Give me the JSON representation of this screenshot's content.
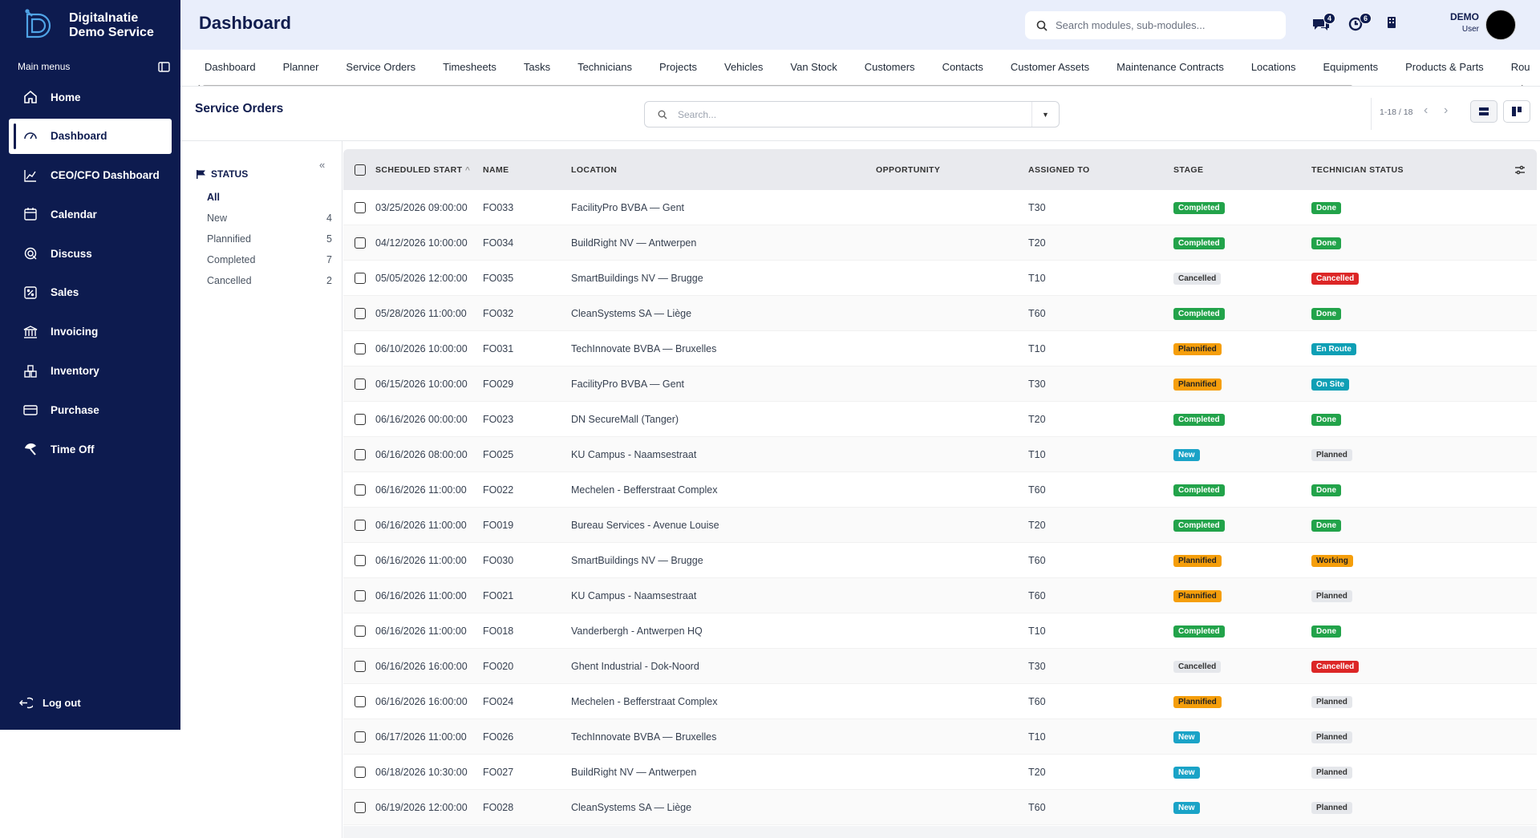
{
  "brand": {
    "line1": "Digitalnatie",
    "line2": "Demo Service"
  },
  "sidebar": {
    "menu_label": "Main menus",
    "items": [
      {
        "label": "Home",
        "icon": "home-icon"
      },
      {
        "label": "Dashboard",
        "icon": "dashboard-icon",
        "active": true
      },
      {
        "label": "CEO/CFO Dashboard",
        "icon": "chart-line-icon"
      },
      {
        "label": "Calendar",
        "icon": "calendar-icon"
      },
      {
        "label": "Discuss",
        "icon": "chat-icon"
      },
      {
        "label": "Sales",
        "icon": "sales-icon"
      },
      {
        "label": "Invoicing",
        "icon": "bank-icon"
      },
      {
        "label": "Inventory",
        "icon": "inventory-icon"
      },
      {
        "label": "Purchase",
        "icon": "card-icon"
      },
      {
        "label": "Time Off",
        "icon": "umbrella-icon"
      }
    ],
    "logout": "Log out"
  },
  "header": {
    "title": "Dashboard",
    "search_placeholder": "Search modules, sub-modules...",
    "messages_count": "4",
    "activities_count": "6",
    "user_name": "DEMO",
    "user_role": "User"
  },
  "tabs": [
    "Dashboard",
    "Planner",
    "Service Orders",
    "Timesheets",
    "Tasks",
    "Technicians",
    "Projects",
    "Vehicles",
    "Van Stock",
    "Customers",
    "Contacts",
    "Customer Assets",
    "Maintenance Contracts",
    "Locations",
    "Equipments",
    "Products & Parts",
    "Rou"
  ],
  "list": {
    "title": "Service Orders",
    "search_placeholder": "Search...",
    "pager": "1-18 / 18"
  },
  "filter": {
    "title": "STATUS",
    "items": [
      {
        "label": "All",
        "count": ""
      },
      {
        "label": "New",
        "count": "4"
      },
      {
        "label": "Plannified",
        "count": "5"
      },
      {
        "label": "Completed",
        "count": "7"
      },
      {
        "label": "Cancelled",
        "count": "2"
      }
    ]
  },
  "table": {
    "columns": [
      "SCHEDULED START",
      "NAME",
      "LOCATION",
      "OPPORTUNITY",
      "ASSIGNED TO",
      "STAGE",
      "TECHNICIAN STATUS"
    ],
    "rows": [
      {
        "start": "03/25/2026 09:00:00",
        "name": "FO033",
        "location": "FacilityPro BVBA — Gent",
        "opp": "",
        "assigned": "T30",
        "stage": "Completed",
        "tech": "Done"
      },
      {
        "start": "04/12/2026 10:00:00",
        "name": "FO034",
        "location": "BuildRight NV — Antwerpen",
        "opp": "",
        "assigned": "T20",
        "stage": "Completed",
        "tech": "Done"
      },
      {
        "start": "05/05/2026 12:00:00",
        "name": "FO035",
        "location": "SmartBuildings NV — Brugge",
        "opp": "",
        "assigned": "T10",
        "stage": "Cancelled",
        "tech": "Cancelled"
      },
      {
        "start": "05/28/2026 11:00:00",
        "name": "FO032",
        "location": "CleanSystems SA — Liège",
        "opp": "",
        "assigned": "T60",
        "stage": "Completed",
        "tech": "Done"
      },
      {
        "start": "06/10/2026 10:00:00",
        "name": "FO031",
        "location": "TechInnovate BVBA — Bruxelles",
        "opp": "",
        "assigned": "T10",
        "stage": "Plannified",
        "tech": "En Route"
      },
      {
        "start": "06/15/2026 10:00:00",
        "name": "FO029",
        "location": "FacilityPro BVBA — Gent",
        "opp": "",
        "assigned": "T30",
        "stage": "Plannified",
        "tech": "On Site"
      },
      {
        "start": "06/16/2026 00:00:00",
        "name": "FO023",
        "location": "DN SecureMall (Tanger)",
        "opp": "",
        "assigned": "T20",
        "stage": "Completed",
        "tech": "Done"
      },
      {
        "start": "06/16/2026 08:00:00",
        "name": "FO025",
        "location": "KU Campus - Naamsestraat",
        "opp": "",
        "assigned": "T10",
        "stage": "New",
        "tech": "Planned"
      },
      {
        "start": "06/16/2026 11:00:00",
        "name": "FO022",
        "location": "Mechelen - Befferstraat Complex",
        "opp": "",
        "assigned": "T60",
        "stage": "Completed",
        "tech": "Done"
      },
      {
        "start": "06/16/2026 11:00:00",
        "name": "FO019",
        "location": "Bureau Services - Avenue Louise",
        "opp": "",
        "assigned": "T20",
        "stage": "Completed",
        "tech": "Done"
      },
      {
        "start": "06/16/2026 11:00:00",
        "name": "FO030",
        "location": "SmartBuildings NV — Brugge",
        "opp": "",
        "assigned": "T60",
        "stage": "Plannified",
        "tech": "Working"
      },
      {
        "start": "06/16/2026 11:00:00",
        "name": "FO021",
        "location": "KU Campus - Naamsestraat",
        "opp": "",
        "assigned": "T60",
        "stage": "Plannified",
        "tech": "Planned"
      },
      {
        "start": "06/16/2026 11:00:00",
        "name": "FO018",
        "location": "Vanderbergh - Antwerpen HQ",
        "opp": "",
        "assigned": "T10",
        "stage": "Completed",
        "tech": "Done"
      },
      {
        "start": "06/16/2026 16:00:00",
        "name": "FO020",
        "location": "Ghent Industrial - Dok-Noord",
        "opp": "",
        "assigned": "T30",
        "stage": "Cancelled",
        "tech": "Cancelled"
      },
      {
        "start": "06/16/2026 16:00:00",
        "name": "FO024",
        "location": "Mechelen - Befferstraat Complex",
        "opp": "",
        "assigned": "T60",
        "stage": "Plannified",
        "tech": "Planned"
      },
      {
        "start": "06/17/2026 11:00:00",
        "name": "FO026",
        "location": "TechInnovate BVBA — Bruxelles",
        "opp": "",
        "assigned": "T10",
        "stage": "New",
        "tech": "Planned"
      },
      {
        "start": "06/18/2026 10:30:00",
        "name": "FO027",
        "location": "BuildRight NV — Antwerpen",
        "opp": "",
        "assigned": "T20",
        "stage": "New",
        "tech": "Planned"
      },
      {
        "start": "06/19/2026 12:00:00",
        "name": "FO028",
        "location": "CleanSystems SA — Liège",
        "opp": "",
        "assigned": "T60",
        "stage": "New",
        "tech": "Planned"
      }
    ]
  },
  "colors": {
    "sidebar": "#0d1b4f",
    "completed": "#22a34a",
    "plannified": "#f59e0b",
    "new": "#1aa3c7",
    "cancelled_tech": "#dc2626"
  }
}
